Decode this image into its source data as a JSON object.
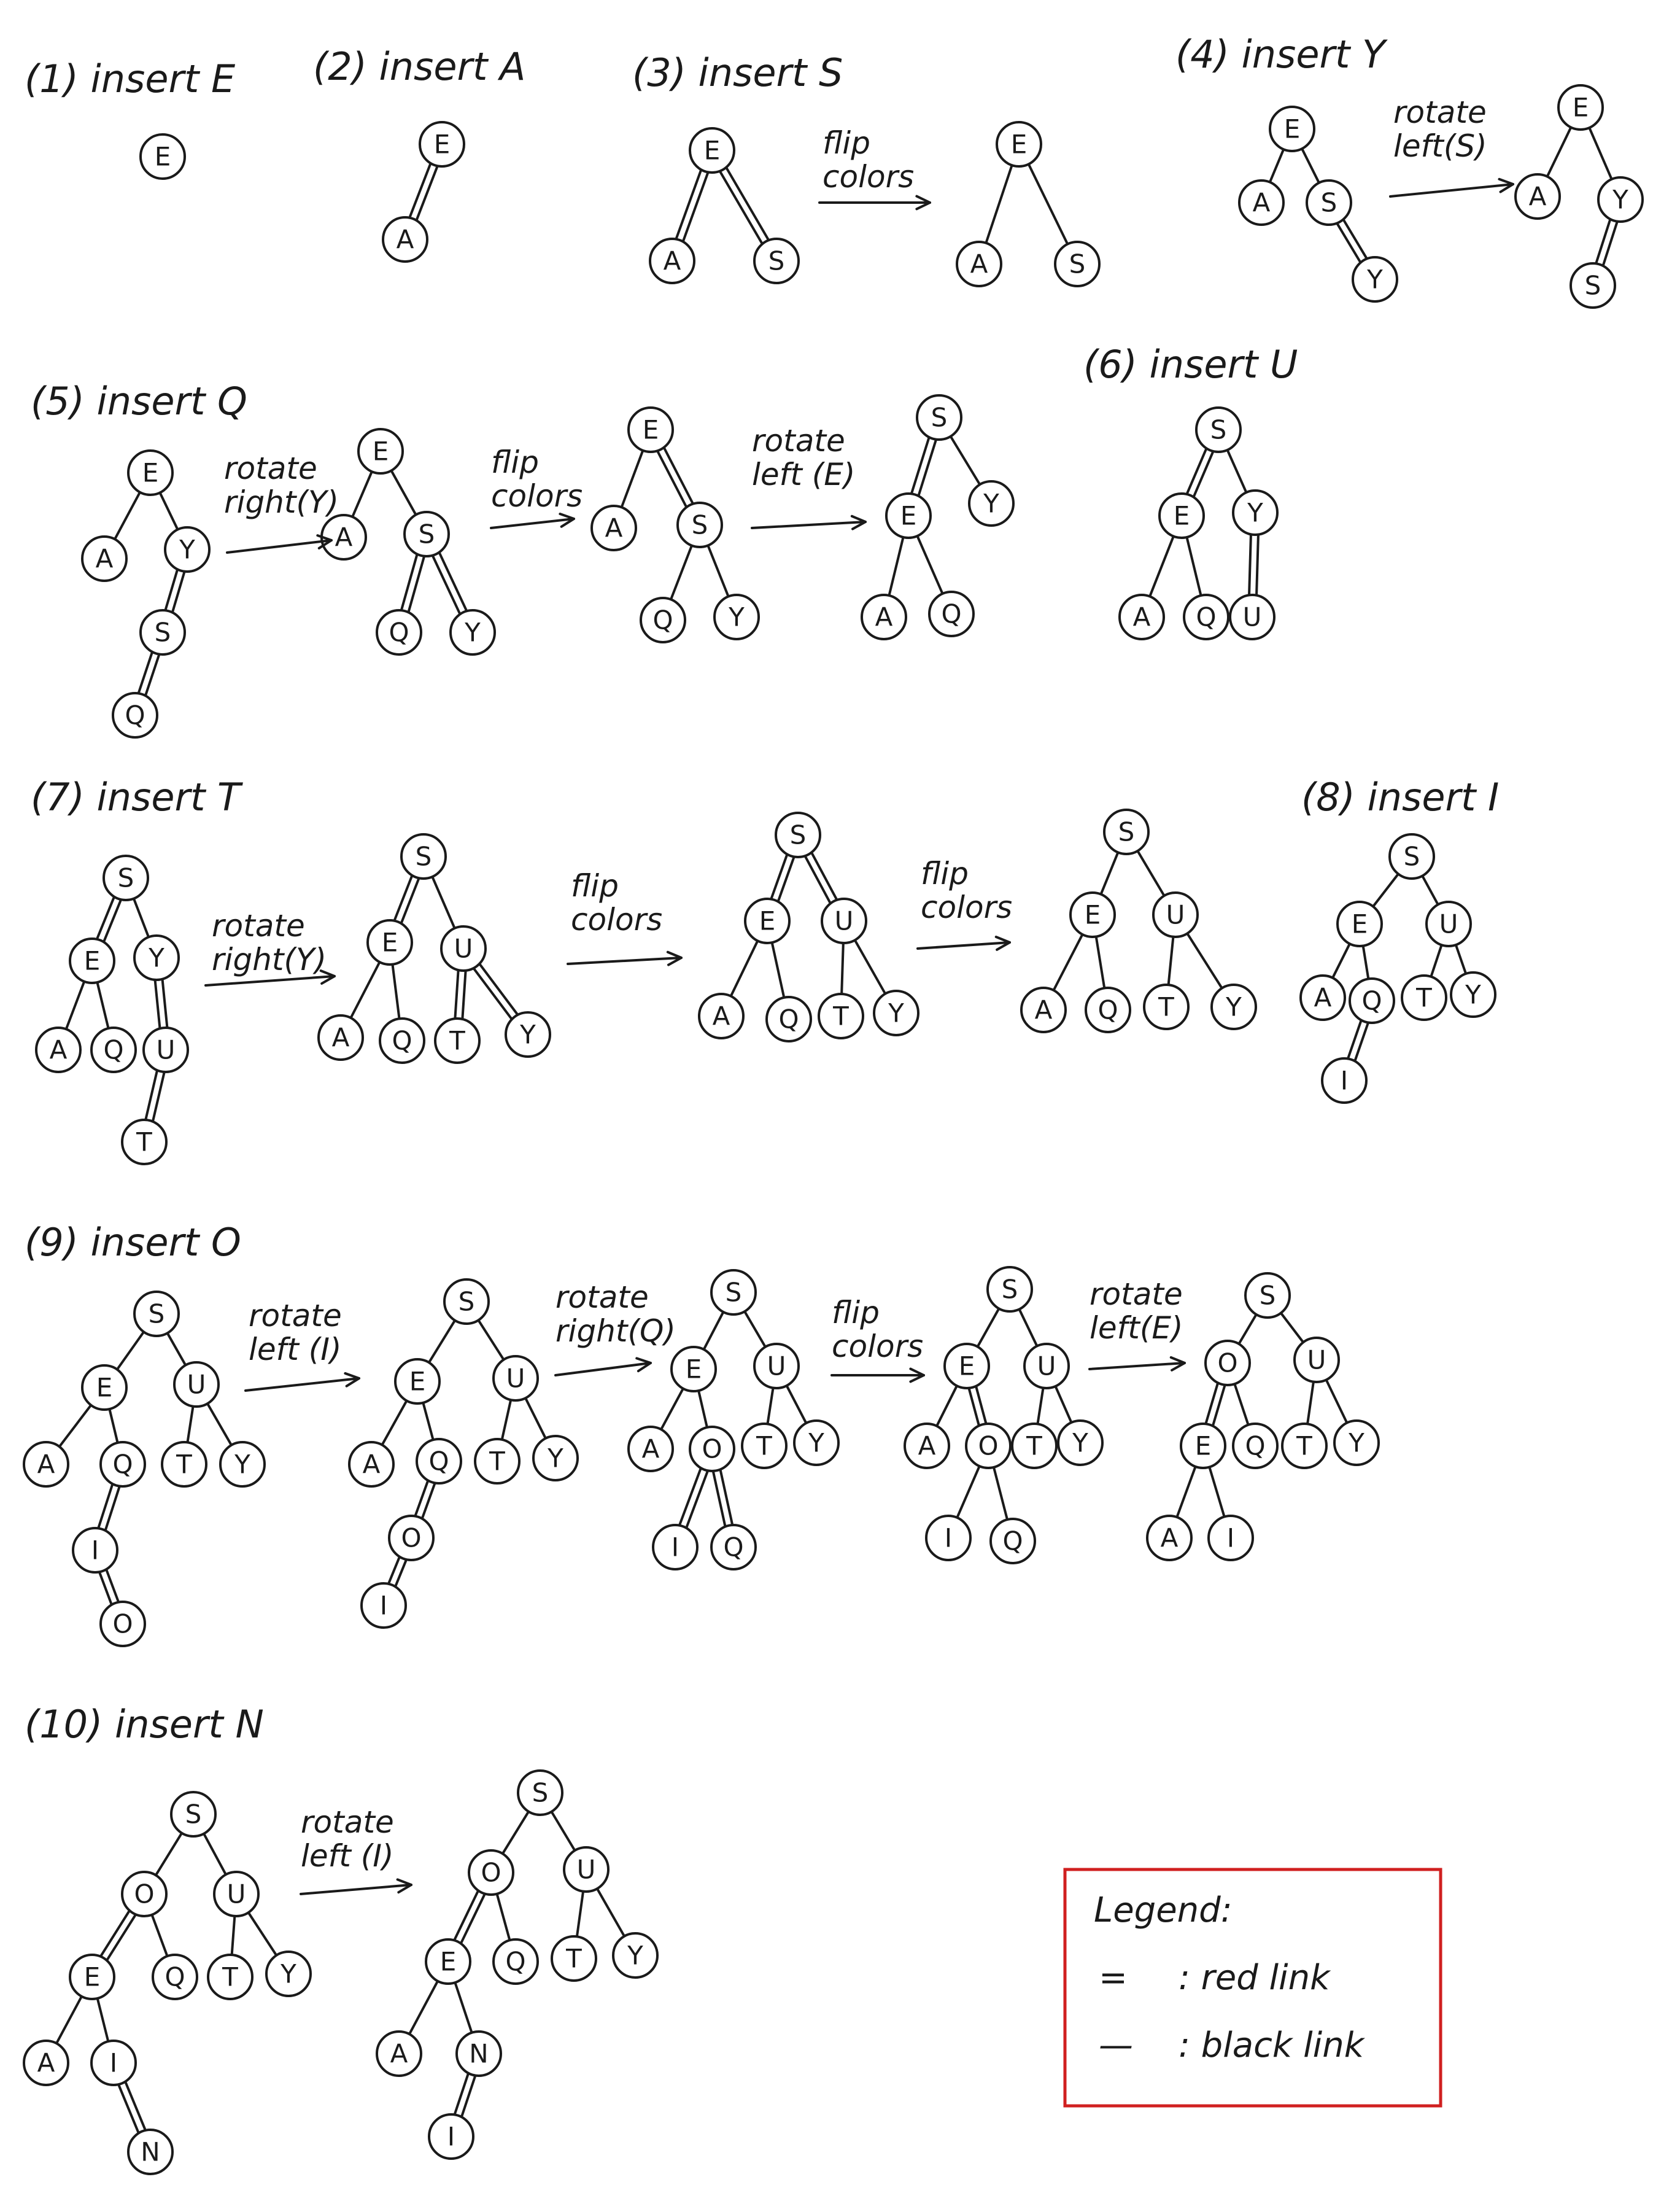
{
  "legend": {
    "title": "Legend:",
    "items": [
      {
        "symbol": "=",
        "text": ": red link"
      },
      {
        "symbol": "—",
        "text": ": black link"
      }
    ],
    "border_color": "#d02020"
  },
  "steps": [
    {
      "label": "(1) insert E",
      "trees": [
        {
          "nodes": [
            "E"
          ],
          "edges": []
        }
      ],
      "operations": []
    },
    {
      "label": "(2) insert A",
      "trees": [
        {
          "nodes": [
            "E",
            "A"
          ],
          "edges": [
            [
              "E",
              "A",
              "red"
            ]
          ]
        }
      ],
      "operations": []
    },
    {
      "label": "(3) insert S",
      "trees": [
        {
          "nodes": [
            "E",
            "A",
            "S"
          ],
          "edges": [
            [
              "E",
              "A",
              "red"
            ],
            [
              "E",
              "S",
              "red"
            ]
          ]
        },
        {
          "nodes": [
            "E",
            "A",
            "S"
          ],
          "edges": [
            [
              "E",
              "A",
              "black"
            ],
            [
              "E",
              "S",
              "black"
            ]
          ]
        }
      ],
      "operations": [
        "flip colors"
      ]
    },
    {
      "label": "(4) insert Y",
      "trees": [
        {
          "nodes": [
            "E",
            "A",
            "S",
            "Y"
          ],
          "edges": [
            [
              "E",
              "A",
              "black"
            ],
            [
              "E",
              "S",
              "black"
            ],
            [
              "S",
              "Y",
              "red"
            ]
          ]
        },
        {
          "nodes": [
            "E",
            "A",
            "Y",
            "S"
          ],
          "edges": [
            [
              "E",
              "A",
              "black"
            ],
            [
              "E",
              "Y",
              "black"
            ],
            [
              "Y",
              "S",
              "red"
            ]
          ]
        }
      ],
      "operations": [
        "rotate left(S)"
      ]
    },
    {
      "label": "(5) insert Q",
      "trees": [
        {
          "nodes": [
            "E",
            "A",
            "Y",
            "S",
            "Q"
          ],
          "edges": [
            [
              "E",
              "A",
              "black"
            ],
            [
              "E",
              "Y",
              "black"
            ],
            [
              "Y",
              "S",
              "red"
            ],
            [
              "S",
              "Q",
              "red"
            ]
          ]
        },
        {
          "nodes": [
            "E",
            "A",
            "S",
            "Q",
            "Y"
          ],
          "edges": [
            [
              "E",
              "A",
              "black"
            ],
            [
              "E",
              "S",
              "black"
            ],
            [
              "S",
              "Q",
              "red"
            ],
            [
              "S",
              "Y",
              "red"
            ]
          ]
        },
        {
          "nodes": [
            "E",
            "A",
            "S",
            "Q",
            "Y"
          ],
          "edges": [
            [
              "E",
              "A",
              "black"
            ],
            [
              "E",
              "S",
              "red"
            ],
            [
              "S",
              "Q",
              "black"
            ],
            [
              "S",
              "Y",
              "black"
            ]
          ]
        },
        {
          "nodes": [
            "S",
            "E",
            "Y",
            "A",
            "Q"
          ],
          "edges": [
            [
              "S",
              "E",
              "red"
            ],
            [
              "S",
              "Y",
              "black"
            ],
            [
              "E",
              "A",
              "black"
            ],
            [
              "E",
              "Q",
              "black"
            ]
          ]
        }
      ],
      "operations": [
        "rotate right(Y)",
        "flip colors",
        "rotate left (E)"
      ]
    },
    {
      "label": "(6) insert U",
      "trees": [
        {
          "nodes": [
            "S",
            "E",
            "Y",
            "A",
            "Q",
            "U"
          ],
          "edges": [
            [
              "S",
              "E",
              "red"
            ],
            [
              "S",
              "Y",
              "black"
            ],
            [
              "E",
              "A",
              "black"
            ],
            [
              "E",
              "Q",
              "black"
            ],
            [
              "Y",
              "U",
              "red"
            ]
          ]
        }
      ],
      "operations": []
    },
    {
      "label": "(7) insert T",
      "trees": [
        {
          "nodes": [
            "S",
            "E",
            "Y",
            "A",
            "Q",
            "U",
            "T"
          ],
          "edges": [
            [
              "S",
              "E",
              "red"
            ],
            [
              "S",
              "Y",
              "black"
            ],
            [
              "E",
              "A",
              "black"
            ],
            [
              "E",
              "Q",
              "black"
            ],
            [
              "Y",
              "U",
              "red"
            ],
            [
              "U",
              "T",
              "red"
            ]
          ]
        },
        {
          "nodes": [
            "S",
            "E",
            "U",
            "A",
            "Q",
            "T",
            "Y"
          ],
          "edges": [
            [
              "S",
              "E",
              "red"
            ],
            [
              "S",
              "U",
              "black"
            ],
            [
              "E",
              "A",
              "black"
            ],
            [
              "E",
              "Q",
              "black"
            ],
            [
              "U",
              "T",
              "red"
            ],
            [
              "U",
              "Y",
              "red"
            ]
          ]
        },
        {
          "nodes": [
            "S",
            "E",
            "U",
            "A",
            "Q",
            "T",
            "Y"
          ],
          "edges": [
            [
              "S",
              "E",
              "red"
            ],
            [
              "S",
              "U",
              "red"
            ],
            [
              "E",
              "A",
              "black"
            ],
            [
              "E",
              "Q",
              "black"
            ],
            [
              "U",
              "T",
              "black"
            ],
            [
              "U",
              "Y",
              "black"
            ]
          ]
        },
        {
          "nodes": [
            "S",
            "E",
            "U",
            "A",
            "Q",
            "T",
            "Y"
          ],
          "edges": [
            [
              "S",
              "E",
              "black"
            ],
            [
              "S",
              "U",
              "black"
            ],
            [
              "E",
              "A",
              "black"
            ],
            [
              "E",
              "Q",
              "black"
            ],
            [
              "U",
              "T",
              "black"
            ],
            [
              "U",
              "Y",
              "black"
            ]
          ]
        }
      ],
      "operations": [
        "rotate right(Y)",
        "flip colors",
        "flip colors"
      ]
    },
    {
      "label": "(8) insert I",
      "trees": [
        {
          "nodes": [
            "S",
            "E",
            "U",
            "A",
            "Q",
            "T",
            "Y",
            "I"
          ],
          "edges": [
            [
              "S",
              "E",
              "black"
            ],
            [
              "S",
              "U",
              "black"
            ],
            [
              "E",
              "A",
              "black"
            ],
            [
              "E",
              "Q",
              "black"
            ],
            [
              "U",
              "T",
              "black"
            ],
            [
              "U",
              "Y",
              "black"
            ],
            [
              "Q",
              "I",
              "red"
            ]
          ]
        }
      ],
      "operations": []
    },
    {
      "label": "(9) insert O",
      "trees": [
        {
          "nodes": [
            "S",
            "E",
            "U",
            "A",
            "Q",
            "T",
            "Y",
            "I",
            "O"
          ],
          "edges": [
            [
              "S",
              "E",
              "black"
            ],
            [
              "S",
              "U",
              "black"
            ],
            [
              "E",
              "A",
              "black"
            ],
            [
              "E",
              "Q",
              "black"
            ],
            [
              "U",
              "T",
              "black"
            ],
            [
              "U",
              "Y",
              "black"
            ],
            [
              "Q",
              "I",
              "red"
            ],
            [
              "I",
              "O",
              "red"
            ]
          ]
        },
        {
          "nodes": [
            "S",
            "E",
            "U",
            "A",
            "Q",
            "T",
            "Y",
            "O",
            "I"
          ],
          "edges": [
            [
              "S",
              "E",
              "black"
            ],
            [
              "S",
              "U",
              "black"
            ],
            [
              "E",
              "A",
              "black"
            ],
            [
              "E",
              "Q",
              "black"
            ],
            [
              "U",
              "T",
              "black"
            ],
            [
              "U",
              "Y",
              "black"
            ],
            [
              "Q",
              "O",
              "red"
            ],
            [
              "O",
              "I",
              "red"
            ]
          ]
        },
        {
          "nodes": [
            "S",
            "E",
            "U",
            "A",
            "O",
            "T",
            "Y",
            "I",
            "Q"
          ],
          "edges": [
            [
              "S",
              "E",
              "black"
            ],
            [
              "S",
              "U",
              "black"
            ],
            [
              "E",
              "A",
              "black"
            ],
            [
              "E",
              "O",
              "black"
            ],
            [
              "U",
              "T",
              "black"
            ],
            [
              "U",
              "Y",
              "black"
            ],
            [
              "O",
              "I",
              "red"
            ],
            [
              "O",
              "Q",
              "red"
            ]
          ]
        },
        {
          "nodes": [
            "S",
            "E",
            "U",
            "A",
            "O",
            "T",
            "Y",
            "I",
            "Q"
          ],
          "edges": [
            [
              "S",
              "E",
              "black"
            ],
            [
              "S",
              "U",
              "black"
            ],
            [
              "E",
              "A",
              "black"
            ],
            [
              "E",
              "O",
              "red"
            ],
            [
              "U",
              "T",
              "black"
            ],
            [
              "U",
              "Y",
              "black"
            ],
            [
              "O",
              "I",
              "black"
            ],
            [
              "O",
              "Q",
              "black"
            ]
          ]
        },
        {
          "nodes": [
            "S",
            "O",
            "U",
            "E",
            "Q",
            "T",
            "Y",
            "A",
            "I"
          ],
          "edges": [
            [
              "S",
              "O",
              "black"
            ],
            [
              "S",
              "U",
              "black"
            ],
            [
              "O",
              "E",
              "red"
            ],
            [
              "O",
              "Q",
              "black"
            ],
            [
              "U",
              "T",
              "black"
            ],
            [
              "U",
              "Y",
              "black"
            ],
            [
              "E",
              "A",
              "black"
            ],
            [
              "E",
              "I",
              "black"
            ]
          ]
        }
      ],
      "operations": [
        "rotate left (I)",
        "rotate right(Q)",
        "flip colors",
        "rotate left(E)"
      ]
    },
    {
      "label": "(10) insert N",
      "trees": [
        {
          "nodes": [
            "S",
            "O",
            "U",
            "E",
            "Q",
            "T",
            "Y",
            "A",
            "I",
            "N"
          ],
          "edges": [
            [
              "S",
              "O",
              "black"
            ],
            [
              "S",
              "U",
              "black"
            ],
            [
              "O",
              "E",
              "red"
            ],
            [
              "O",
              "Q",
              "black"
            ],
            [
              "U",
              "T",
              "black"
            ],
            [
              "U",
              "Y",
              "black"
            ],
            [
              "E",
              "A",
              "black"
            ],
            [
              "E",
              "I",
              "black"
            ],
            [
              "I",
              "N",
              "red"
            ]
          ]
        },
        {
          "nodes": [
            "S",
            "O",
            "U",
            "E",
            "Q",
            "T",
            "Y",
            "A",
            "N",
            "I"
          ],
          "edges": [
            [
              "S",
              "O",
              "black"
            ],
            [
              "S",
              "U",
              "black"
            ],
            [
              "O",
              "E",
              "red"
            ],
            [
              "O",
              "Q",
              "black"
            ],
            [
              "U",
              "T",
              "black"
            ],
            [
              "U",
              "Y",
              "black"
            ],
            [
              "E",
              "A",
              "black"
            ],
            [
              "E",
              "N",
              "black"
            ],
            [
              "N",
              "I",
              "red"
            ]
          ]
        }
      ],
      "operations": [
        "rotate left (I)"
      ]
    }
  ]
}
